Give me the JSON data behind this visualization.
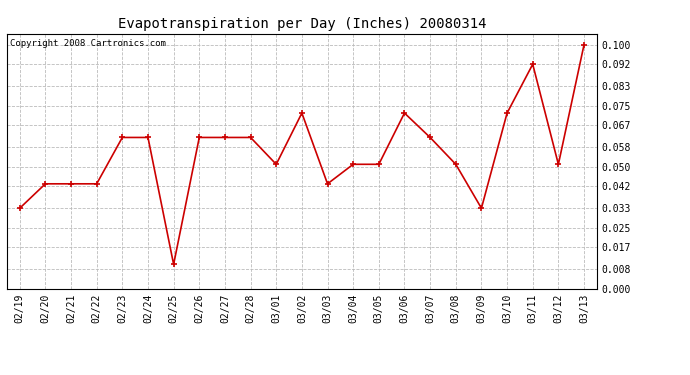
{
  "title": "Evapotranspiration per Day (Inches) 20080314",
  "copyright_text": "Copyright 2008 Cartronics.com",
  "x_labels": [
    "02/19",
    "02/20",
    "02/21",
    "02/22",
    "02/23",
    "02/24",
    "02/25",
    "02/26",
    "02/27",
    "02/28",
    "03/01",
    "03/02",
    "03/03",
    "03/04",
    "03/05",
    "03/06",
    "03/07",
    "03/08",
    "03/09",
    "03/10",
    "03/11",
    "03/12",
    "03/13"
  ],
  "y_values": [
    0.033,
    0.043,
    0.043,
    0.043,
    0.062,
    0.062,
    0.01,
    0.062,
    0.062,
    0.062,
    0.051,
    0.072,
    0.043,
    0.051,
    0.051,
    0.072,
    0.062,
    0.051,
    0.033,
    0.072,
    0.092,
    0.051,
    0.1
  ],
  "line_color": "#cc0000",
  "marker": "+",
  "marker_size": 5,
  "marker_linewidth": 1.2,
  "line_width": 1.2,
  "background_color": "#ffffff",
  "grid_color": "#bbbbbb",
  "ytick_values": [
    0.0,
    0.008,
    0.017,
    0.025,
    0.033,
    0.042,
    0.05,
    0.058,
    0.067,
    0.075,
    0.083,
    0.092,
    0.1
  ],
  "ylim": [
    0.0,
    0.1045
  ],
  "title_fontsize": 10,
  "copyright_fontsize": 6.5,
  "tick_fontsize": 7
}
